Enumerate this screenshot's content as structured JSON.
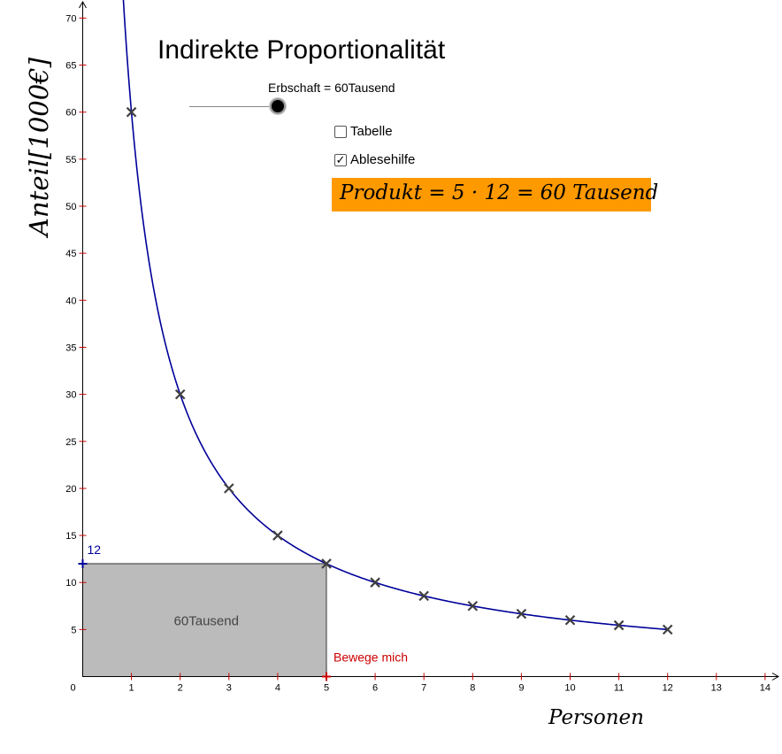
{
  "title": "Indirekte Proportionalität",
  "slider": {
    "label": "Erbschaft = 60Tausend",
    "value": 60
  },
  "checkboxes": [
    {
      "label": "Tabelle",
      "checked": false,
      "mark": ""
    },
    {
      "label": "Ablesehilfe",
      "checked": true,
      "mark": "✓"
    }
  ],
  "product_text": "Produkt = 5 · 12 = 60 Tausend",
  "colors": {
    "curve": "#000099",
    "marker": "#404040",
    "rect_fill": "#bbbbbb",
    "product_bg": "#ff9900",
    "move_point": "#cc0000",
    "y_point": "#000099"
  },
  "chart_data": {
    "type": "scatter",
    "xlabel": "Personen",
    "ylabel": "Anteil[1000€]",
    "xlim": [
      0,
      14
    ],
    "ylim": [
      0,
      70
    ],
    "x_ticks": [
      0,
      1,
      2,
      3,
      4,
      5,
      6,
      7,
      8,
      9,
      10,
      11,
      12,
      13,
      14
    ],
    "y_ticks": [
      5,
      10,
      15,
      20,
      25,
      30,
      35,
      40,
      45,
      50,
      55,
      60,
      65,
      70
    ],
    "curve": {
      "function": "y = 60 / x",
      "k": 60
    },
    "points": [
      {
        "x": 1,
        "y": 60
      },
      {
        "x": 2,
        "y": 30
      },
      {
        "x": 3,
        "y": 20
      },
      {
        "x": 4,
        "y": 15
      },
      {
        "x": 5,
        "y": 12
      },
      {
        "x": 6,
        "y": 10
      },
      {
        "x": 7,
        "y": 8.57
      },
      {
        "x": 8,
        "y": 7.5
      },
      {
        "x": 9,
        "y": 6.67
      },
      {
        "x": 10,
        "y": 6
      },
      {
        "x": 11,
        "y": 5.45
      },
      {
        "x": 12,
        "y": 5
      }
    ],
    "selected": {
      "x": 5,
      "y": 12
    },
    "rect_label": "60Tausend",
    "y_point_label": "12",
    "move_label": "Bewege mich",
    "grid": false
  }
}
